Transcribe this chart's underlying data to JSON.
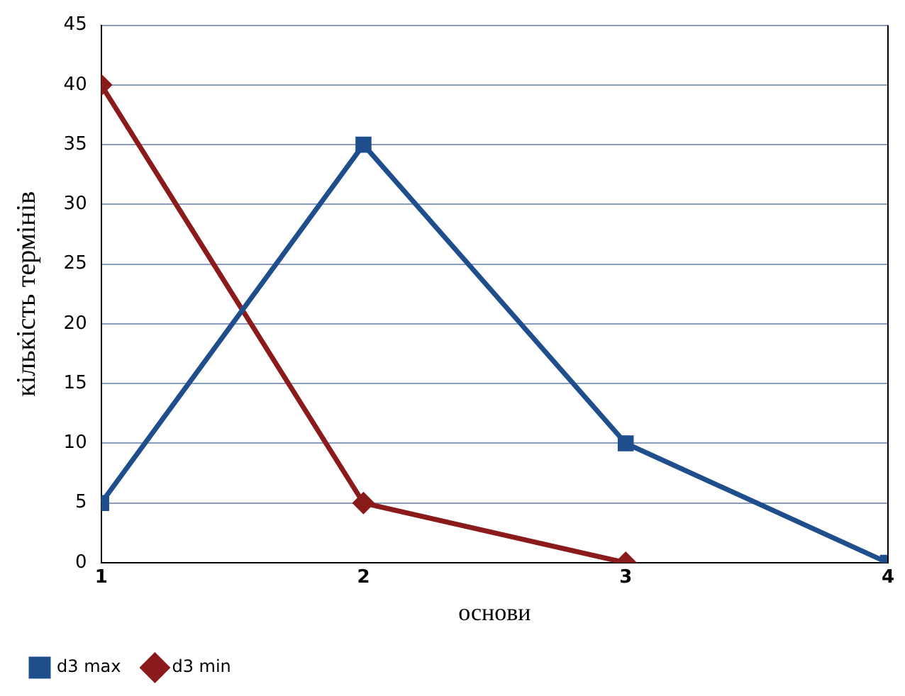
{
  "chart_data": {
    "type": "line",
    "xlabel": "основи",
    "ylabel": "кількість термінів",
    "x": [
      1,
      2,
      3,
      4
    ],
    "xlim": [
      1,
      4
    ],
    "xticks": [
      1,
      2,
      3,
      4
    ],
    "ylim": [
      0,
      45
    ],
    "yticks": [
      0,
      5,
      10,
      15,
      20,
      25,
      30,
      35,
      40,
      45
    ],
    "grid": "y",
    "legend": "bottom left",
    "line_style": "solid",
    "series": [
      {
        "name": "d3 max",
        "color": "#1f4e8c",
        "marker": "square",
        "values": [
          5,
          35,
          10,
          0
        ]
      },
      {
        "name": "d3 min",
        "color": "#8b1a1a",
        "marker": "diamond",
        "x": [
          1,
          2,
          3
        ],
        "values": [
          40,
          5,
          0
        ]
      }
    ]
  }
}
